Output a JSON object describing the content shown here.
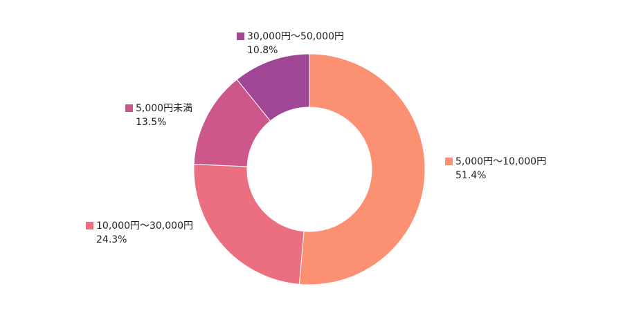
{
  "chart_data": {
    "type": "pie",
    "subtype": "donut",
    "start": "top",
    "direction": "clockwise",
    "slices": [
      {
        "label": "5,000円〜10,000円",
        "value": 51.4,
        "value_label": "51.4%",
        "color": "#FB9072"
      },
      {
        "label": "10,000円〜30,000円",
        "value": 24.3,
        "value_label": "24.3%",
        "color": "#EC6F81"
      },
      {
        "label": "5,000円未満",
        "value": 13.5,
        "value_label": "13.5%",
        "color": "#CD578B"
      },
      {
        "label": "30,000円〜50,000円",
        "value": 10.8,
        "value_label": "10.8%",
        "color": "#9F4694"
      }
    ],
    "legend": "labels beside slices"
  }
}
